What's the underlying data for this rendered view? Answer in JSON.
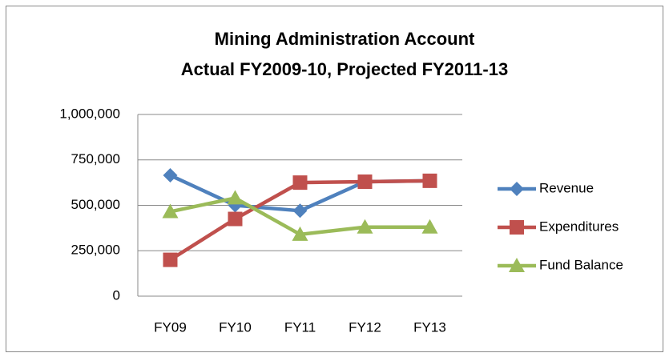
{
  "chart_data": {
    "type": "line",
    "title": "Mining Administration Account",
    "subtitle": "Actual FY2009-10, Projected FY2011-13",
    "categories": [
      "FY09",
      "FY10",
      "FY11",
      "FY12",
      "FY13"
    ],
    "series": [
      {
        "name": "Revenue",
        "color": "#4f81bd",
        "marker": "diamond",
        "values": [
          665000,
          500000,
          470000,
          630000,
          635000
        ]
      },
      {
        "name": "Expenditures",
        "color": "#c0504d",
        "marker": "square",
        "values": [
          200000,
          425000,
          625000,
          630000,
          635000
        ]
      },
      {
        "name": "Fund Balance",
        "color": "#9bbb59",
        "marker": "triangle",
        "values": [
          465000,
          540000,
          340000,
          380000,
          380000
        ]
      }
    ],
    "ylim": [
      0,
      1000000
    ],
    "yticks": [
      0,
      {
        "value": 250000,
        "label": "250,000"
      },
      {
        "value": 500000,
        "label": "500,000"
      },
      {
        "value": 750000,
        "label": "750,000"
      },
      {
        "value": 1000000,
        "label": "1,000,000"
      }
    ],
    "grid": true,
    "legend": "right"
  }
}
